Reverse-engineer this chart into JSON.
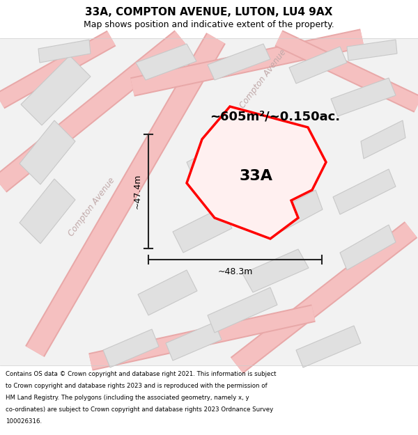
{
  "title": "33A, COMPTON AVENUE, LUTON, LU4 9AX",
  "subtitle": "Map shows position and indicative extent of the property.",
  "footer_lines": [
    "Contains OS data © Crown copyright and database right 2021. This information is subject",
    "to Crown copyright and database rights 2023 and is reproduced with the permission of",
    "HM Land Registry. The polygons (including the associated geometry, namely x, y",
    "co-ordinates) are subject to Crown copyright and database rights 2023 Ordnance Survey",
    "100026316."
  ],
  "area_label": "~605m²/~0.150ac.",
  "label_33a": "33A",
  "dim_height": "~47.4m",
  "dim_width": "~48.3m",
  "background_color": "#f5f5f5",
  "road_color_light": "#f5c0c0",
  "road_color_dark": "#e8a8a8",
  "building_fill": "#e0e0e0",
  "building_edge": "#c8c8c8",
  "highlight_fill": "#fff0f0",
  "highlight_edge": "#ff0000",
  "street_label_color": "#c0a8a8",
  "dim_line_color": "#222222",
  "title_fontsize": 11,
  "subtitle_fontsize": 9,
  "area_fontsize": 13,
  "label_fontsize": 16,
  "dim_fontsize": 9,
  "footer_fontsize": 6.2,
  "street_fontsize": 8.5
}
